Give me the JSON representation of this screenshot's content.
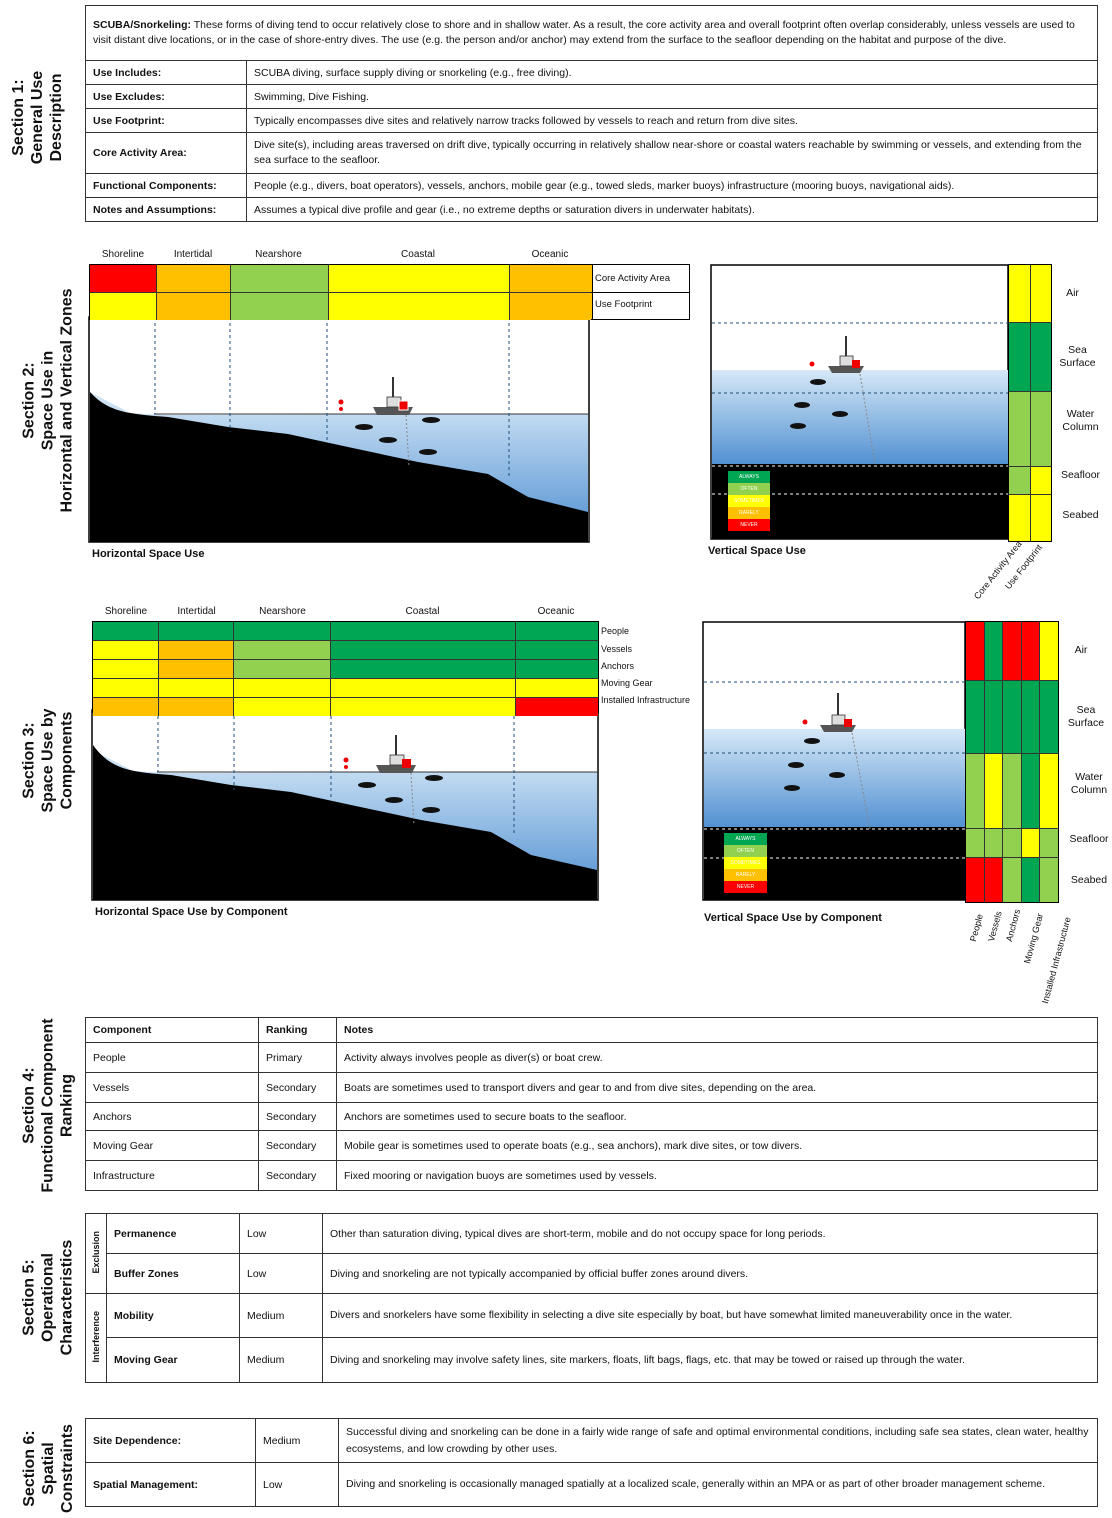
{
  "section1": {
    "title": "Section 1:\nGeneral Use\nDescription",
    "intro_label": "SCUBA/Snorkeling:",
    "intro_text": " These forms of diving tend to occur relatively close to shore and in shallow water. As a result, the core activity area and overall footprint often overlap considerably, unless vessels are used to visit distant dive locations, or in the case of shore-entry dives. The use (e.g. the person and/or anchor) may extend from the surface to the seafloor depending on the habitat and purpose of the dive.",
    "rows": [
      {
        "label": "Use Includes:",
        "value": "SCUBA diving, surface supply diving or snorkeling (e.g., free diving)."
      },
      {
        "label": "Use Excludes:",
        "value": "Swimming, Dive Fishing."
      },
      {
        "label": "Use Footprint:",
        "value": "Typically encompasses dive sites and relatively narrow tracks followed by vessels to reach and return from dive sites."
      },
      {
        "label": "Core Activity Area:",
        "value": "Dive site(s), including areas traversed on drift dive, typically occurring in relatively shallow near-shore or coastal waters reachable by swimming or vessels, and extending from the sea surface to the seafloor."
      },
      {
        "label": "Functional Components:",
        "value": "People (e.g., divers, boat operators), vessels, anchors, mobile gear (e.g., towed sleds, marker buoys) infrastructure (mooring buoys, navigational aids)."
      },
      {
        "label": "Notes and Assumptions:",
        "value": "Assumes a typical dive profile and gear (i.e., no extreme depths or saturation divers in underwater habitats)."
      }
    ]
  },
  "section2": {
    "title": "Section 2:\nSpace Use in\nHorizontal and Vertical Zones",
    "zones": [
      "Shoreline",
      "Intertidal",
      "Nearshore",
      "Coastal",
      "Oceanic"
    ],
    "row_labels": [
      "Core Activity Area",
      "Use Footprint"
    ],
    "horizontal_caption": "Horizontal Space Use",
    "vertical_caption": "Vertical Space Use",
    "vertical_zones": [
      "Air",
      "Sea\nSurface",
      "Water\nColumn",
      "Seafloor",
      "Seabed"
    ],
    "vertical_columns": [
      "Core Activity Area",
      "Use Footprint"
    ]
  },
  "legend": [
    "ALWAYS",
    "OFTEN",
    "SOMETIMES",
    "RARELY",
    "NEVER"
  ],
  "colors": {
    "always": "#00a651",
    "often": "#92d050",
    "sometimes": "#ffff00",
    "rarely": "#ffc000",
    "never": "#ff0000"
  },
  "section3": {
    "title": "Section 3:\nSpace Use by\nComponents",
    "zones": [
      "Shoreline",
      "Intertidal",
      "Nearshore",
      "Coastal",
      "Oceanic"
    ],
    "row_labels": [
      "People",
      "Vessels",
      "Anchors",
      "Moving Gear",
      "Installed Infrastructure"
    ],
    "horizontal_caption": "Horizontal Space Use by Component",
    "vertical_caption": "Vertical Space Use by Component",
    "vertical_zones": [
      "Air",
      "Sea\nSurface",
      "Water\nColumn",
      "Seafloor",
      "Seabed"
    ],
    "vertical_columns": [
      "People",
      "Vessels",
      "Anchors",
      "Moving Gear",
      "Installed Infrastructure"
    ]
  },
  "section4": {
    "title": "Section 4:\nFunctional Component\nRanking",
    "headers": [
      "Component",
      "Ranking",
      "Notes"
    ],
    "rows": [
      {
        "component": "People",
        "ranking": "Primary",
        "notes": "Activity always involves people as diver(s) or boat crew."
      },
      {
        "component": "Vessels",
        "ranking": "Secondary",
        "notes": "Boats are sometimes used to transport divers and gear to and from dive sites, depending on the area."
      },
      {
        "component": "Anchors",
        "ranking": "Secondary",
        "notes": "Anchors are sometimes used to secure boats to the seafloor."
      },
      {
        "component": "Moving Gear",
        "ranking": "Secondary",
        "notes": "Mobile gear is sometimes used to operate boats (e.g., sea anchors), mark dive sites, or tow divers."
      },
      {
        "component": "Infrastructure",
        "ranking": "Secondary",
        "notes": "Fixed mooring or navigation buoys are sometimes used by vessels."
      }
    ]
  },
  "section5": {
    "title": "Section 5:\nOperational\nCharacteristics",
    "groups": [
      "Exclusion",
      "Interference"
    ],
    "rows": [
      {
        "label": "Permanence",
        "level": "Low",
        "notes": "Other than saturation diving, typical dives are short-term, mobile and do not occupy space for long periods."
      },
      {
        "label": "Buffer Zones",
        "level": "Low",
        "notes": "Diving and snorkeling are not typically accompanied by official buffer zones around divers."
      },
      {
        "label": "Mobility",
        "level": "Medium",
        "notes": "Divers and snorkelers have some flexibility in selecting a dive site especially by boat, but have somewhat limited maneuverability once in the water."
      },
      {
        "label": "Moving Gear",
        "level": "Medium",
        "notes": "Diving and snorkeling may involve safety lines, site markers, floats, lift bags, flags, etc. that may be towed or raised up through the water."
      }
    ]
  },
  "section6": {
    "title": "Section 6:\nSpatial\nConstraints",
    "rows": [
      {
        "label": "Site Dependence:",
        "level": "Medium",
        "notes": "Successful diving and snorkeling can be done in a fairly wide range of safe and optimal environmental conditions, including safe sea states, clean water, healthy ecosystems, and low crowding by other uses."
      },
      {
        "label": "Spatial Management:",
        "level": "Low",
        "notes": "Diving and snorkeling is occasionally managed spatially at a localized scale, generally within an MPA or as part of other broader management scheme."
      }
    ]
  }
}
